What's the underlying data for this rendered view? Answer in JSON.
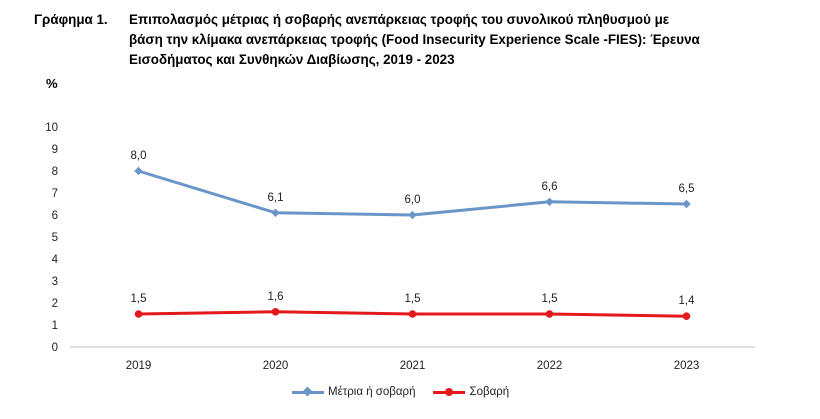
{
  "caption": {
    "number": "Γράφημα 1.",
    "lines": [
      "Επιπολασμός μέτριας ή σοβαρής ανεπάρκειας τροφής του συνολικού πληθυσμού με",
      "βάση την κλίμακα ανεπάρκειας τροφής (Food Insecurity Experience Scale -FIES): Έρευνα",
      "Εισοδήματος και Συνθηκών Διαβίωσης, 2019 - 2023"
    ]
  },
  "chart_data": {
    "type": "line",
    "title": "Επιπολασμός μέτριας ή σοβαρής ανεπάρκειας τροφής του συνολικού πληθυσμού με βάση την κλίμακα ανεπάρκειας τροφής (Food Insecurity Experience Scale -FIES): Έρευνα Εισοδήματος και Συνθηκών Διαβίωσης, 2019 - 2023",
    "ylabel": "%",
    "xlabel": "",
    "categories": [
      "2019",
      "2020",
      "2021",
      "2022",
      "2023"
    ],
    "ylim": [
      0,
      10
    ],
    "yticks": [
      0,
      1,
      2,
      3,
      4,
      5,
      6,
      7,
      8,
      9,
      10
    ],
    "grid": false,
    "legend_position": "bottom",
    "series": [
      {
        "name": "Μέτρια ή σοβαρή",
        "color": "#6a95c8",
        "marker": "diamond",
        "values": [
          8.0,
          6.1,
          6.0,
          6.6,
          6.5
        ],
        "labels": [
          "8,0",
          "6,1",
          "6,0",
          "6,6",
          "6,5"
        ]
      },
      {
        "name": "Σοβαρή",
        "color": "#e3191c",
        "marker": "circle",
        "values": [
          1.5,
          1.6,
          1.5,
          1.5,
          1.4
        ],
        "labels": [
          "1,5",
          "1,6",
          "1,5",
          "1,5",
          "1,4"
        ]
      }
    ]
  }
}
